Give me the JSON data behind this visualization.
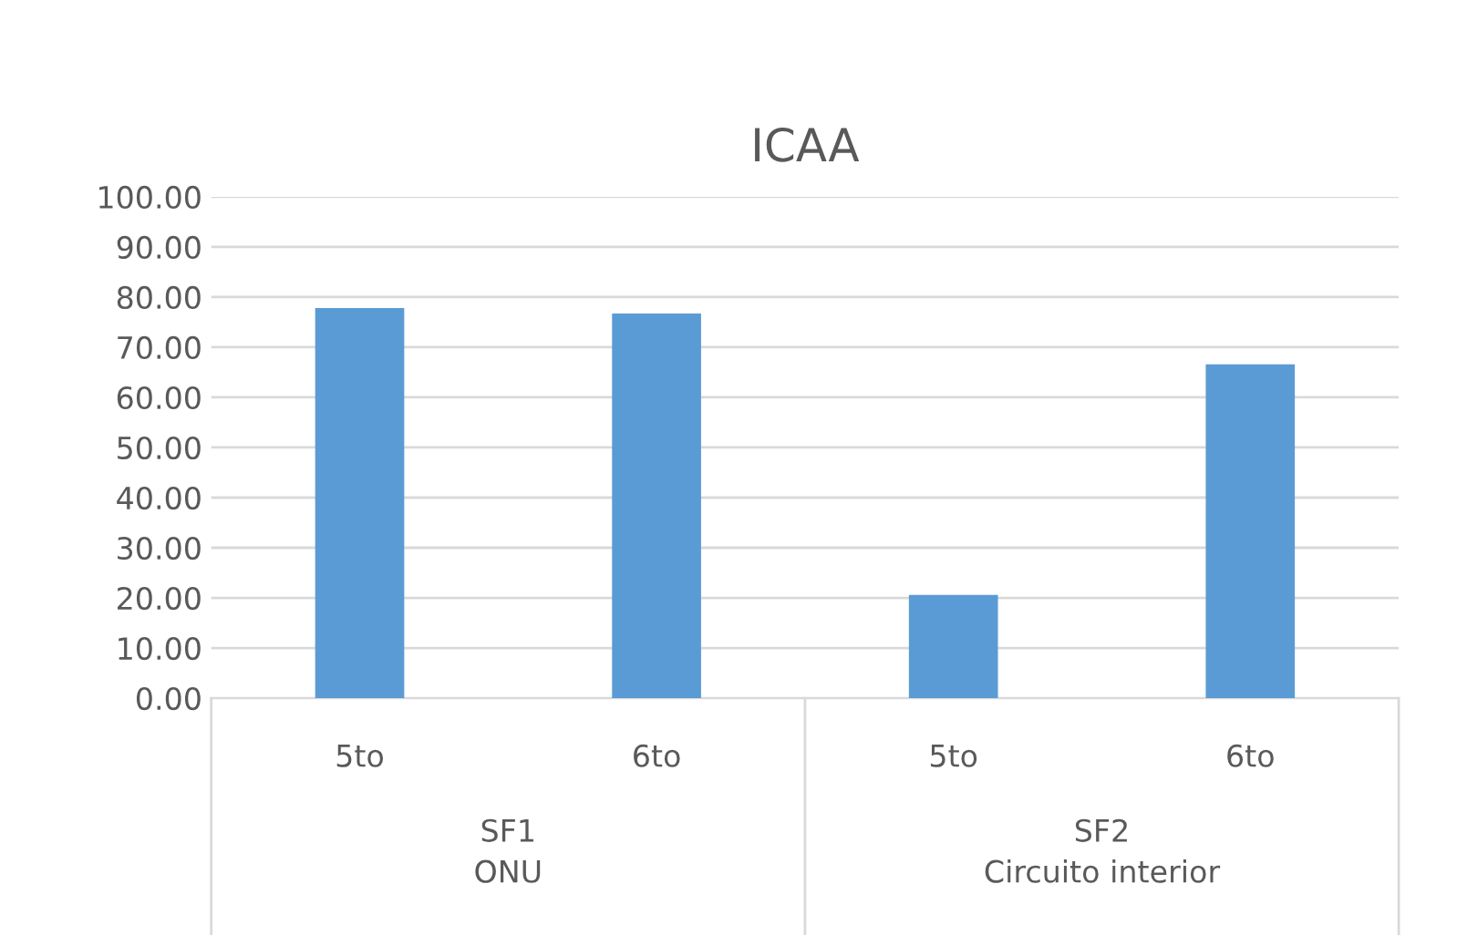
{
  "chart_data": {
    "type": "bar",
    "title": "ICAA",
    "categories": [
      "5to",
      "6to",
      "5to",
      "6to"
    ],
    "values": [
      77.8,
      76.7,
      20.6,
      66.6
    ],
    "color": "#5b9bd5",
    "ylim": [
      0,
      100
    ],
    "yticks": [
      {
        "value": 0,
        "label": "0.00"
      },
      {
        "value": 10,
        "label": "10.00"
      },
      {
        "value": 20,
        "label": "20.00"
      },
      {
        "value": 30,
        "label": "30.00"
      },
      {
        "value": 40,
        "label": "40.00"
      },
      {
        "value": 50,
        "label": "50.00"
      },
      {
        "value": 60,
        "label": "60.00"
      },
      {
        "value": 70,
        "label": "70.00"
      },
      {
        "value": 80,
        "label": "80.00"
      },
      {
        "value": 90,
        "label": "90.00"
      },
      {
        "value": 100,
        "label": "100.00"
      }
    ],
    "grid": "y",
    "annotations": [
      "SF1\nONU",
      "SF2\nCircuito interior"
    ]
  }
}
